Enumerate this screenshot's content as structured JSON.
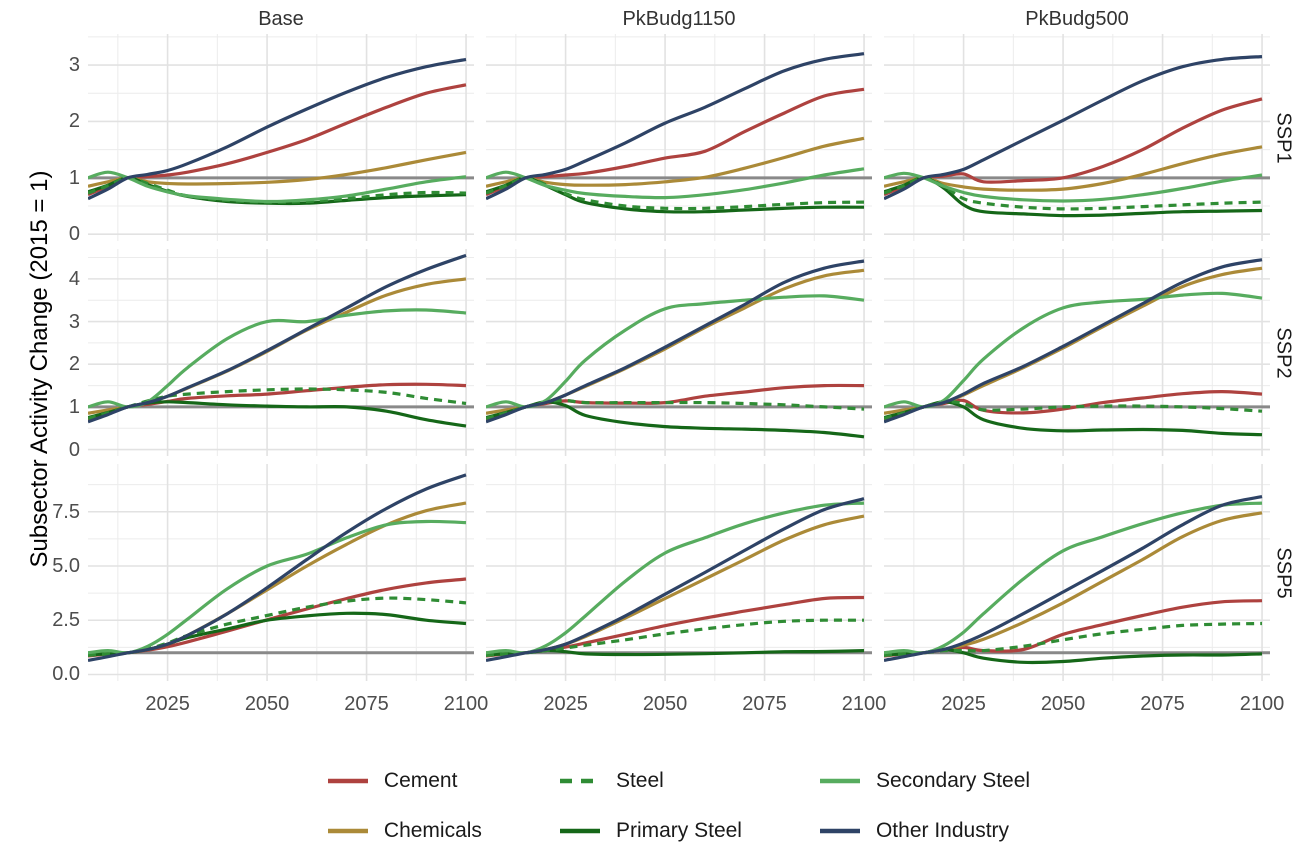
{
  "y_axis_title": "Subsector Activity Change (2015 = 1)",
  "column_headers": [
    "Base",
    "PkBudg1150",
    "PkBudg500"
  ],
  "row_labels": [
    "SSP1",
    "SSP2",
    "SSP5"
  ],
  "x_tick_labels": [
    "2025",
    "2050",
    "2075",
    "2100"
  ],
  "y_tick_labels": [
    [
      "0",
      "1",
      "2",
      "3"
    ],
    [
      "0",
      "1",
      "2",
      "3",
      "4"
    ],
    [
      "0.0",
      "2.5",
      "5.0",
      "7.5"
    ]
  ],
  "colors": {
    "Cement": "#AE423F",
    "Chemicals": "#AB8A38",
    "Steel": "#2F8C34",
    "Primary Steel": "#156718",
    "Secondary Steel": "#57AC5F",
    "Other Industry": "#2E4366",
    "reference_line": "#898989",
    "grid_major": "#E2E2E2",
    "grid_minor": "#ECECEC",
    "axis_text": "#4D4D4D"
  },
  "legend": [
    {
      "label": "Cement",
      "dashed": false
    },
    {
      "label": "Chemicals",
      "dashed": false
    },
    {
      "label": "Steel",
      "dashed": true
    },
    {
      "label": "Primary Steel",
      "dashed": false
    },
    {
      "label": "Secondary Steel",
      "dashed": false
    },
    {
      "label": "Other Industry",
      "dashed": false
    }
  ],
  "chart_data": {
    "type": "line",
    "x": [
      2005,
      2010,
      2015,
      2020,
      2025,
      2030,
      2040,
      2050,
      2060,
      2070,
      2080,
      2090,
      2100
    ],
    "draw_order": [
      "Cement",
      "Chemicals",
      "Primary Steel",
      "Steel",
      "Secondary Steel",
      "Other Industry"
    ],
    "layout": {
      "x_range": [
        2005,
        2102
      ],
      "x_major": [
        2025,
        2050,
        2075,
        2100
      ],
      "x_minor": [
        2012.5,
        2037.5,
        2062.5,
        2087.5
      ],
      "row_ylims": [
        [
          -0.12,
          3.55
        ],
        [
          -0.15,
          4.7
        ],
        [
          -0.3,
          9.7
        ]
      ],
      "y_major": [
        [
          0,
          1,
          2,
          3
        ],
        [
          0,
          1,
          2,
          3,
          4
        ],
        [
          0,
          2.5,
          5,
          7.5
        ]
      ],
      "y_minor": [
        [
          0.5,
          1.5,
          2.5,
          3.5
        ],
        [
          0.5,
          1.5,
          2.5,
          3.5,
          4.5
        ],
        [
          1.25,
          3.75,
          6.25,
          8.75
        ]
      ],
      "reference_line_y": 1,
      "grid": true,
      "legend_position": "bottom"
    },
    "facets": [
      {
        "scenario": "Base",
        "ssp": "SSP1",
        "series": {
          "Cement": [
            0.7,
            0.85,
            1.0,
            1.02,
            1.05,
            1.1,
            1.25,
            1.45,
            1.68,
            1.97,
            2.25,
            2.5,
            2.65
          ],
          "Chemicals": [
            0.85,
            0.93,
            1.0,
            0.93,
            0.9,
            0.89,
            0.9,
            0.92,
            0.97,
            1.06,
            1.18,
            1.32,
            1.45
          ],
          "Steel": [
            0.73,
            0.86,
            1.0,
            0.9,
            0.78,
            0.68,
            0.6,
            0.57,
            0.58,
            0.63,
            0.7,
            0.74,
            0.73
          ],
          "Primary Steel": [
            0.75,
            0.87,
            1.0,
            0.88,
            0.76,
            0.67,
            0.58,
            0.55,
            0.55,
            0.6,
            0.65,
            0.68,
            0.7
          ],
          "Secondary Steel": [
            1.0,
            1.1,
            1.0,
            0.85,
            0.75,
            0.68,
            0.62,
            0.58,
            0.61,
            0.68,
            0.8,
            0.93,
            1.02
          ],
          "Other Industry": [
            0.63,
            0.8,
            1.0,
            1.06,
            1.13,
            1.25,
            1.55,
            1.9,
            2.22,
            2.52,
            2.78,
            2.97,
            3.1
          ]
        }
      },
      {
        "scenario": "PkBudg1150",
        "ssp": "SSP1",
        "series": {
          "Cement": [
            0.7,
            0.85,
            1.0,
            1.02,
            1.05,
            1.08,
            1.2,
            1.35,
            1.47,
            1.82,
            2.15,
            2.45,
            2.57
          ],
          "Chemicals": [
            0.85,
            0.93,
            1.0,
            0.92,
            0.88,
            0.87,
            0.88,
            0.93,
            1.01,
            1.17,
            1.36,
            1.56,
            1.7
          ],
          "Steel": [
            0.73,
            0.86,
            1.0,
            0.88,
            0.72,
            0.61,
            0.5,
            0.46,
            0.46,
            0.49,
            0.53,
            0.56,
            0.57
          ],
          "Primary Steel": [
            0.75,
            0.87,
            1.0,
            0.86,
            0.7,
            0.56,
            0.45,
            0.4,
            0.4,
            0.43,
            0.46,
            0.48,
            0.48
          ],
          "Secondary Steel": [
            1.0,
            1.1,
            1.0,
            0.86,
            0.78,
            0.72,
            0.67,
            0.65,
            0.7,
            0.79,
            0.91,
            1.05,
            1.16
          ],
          "Other Industry": [
            0.63,
            0.8,
            1.0,
            1.06,
            1.15,
            1.3,
            1.62,
            1.97,
            2.25,
            2.58,
            2.9,
            3.1,
            3.2
          ]
        }
      },
      {
        "scenario": "PkBudg500",
        "ssp": "SSP1",
        "series": {
          "Cement": [
            0.7,
            0.85,
            1.0,
            1.03,
            1.07,
            0.93,
            0.95,
            1.0,
            1.2,
            1.5,
            1.88,
            2.2,
            2.4
          ],
          "Chemicals": [
            0.85,
            0.93,
            1.0,
            0.9,
            0.84,
            0.8,
            0.78,
            0.8,
            0.9,
            1.06,
            1.25,
            1.42,
            1.55
          ],
          "Steel": [
            0.73,
            0.86,
            1.0,
            0.85,
            0.63,
            0.55,
            0.48,
            0.45,
            0.46,
            0.49,
            0.52,
            0.55,
            0.57
          ],
          "Primary Steel": [
            0.75,
            0.87,
            1.0,
            0.82,
            0.52,
            0.4,
            0.36,
            0.33,
            0.34,
            0.37,
            0.4,
            0.41,
            0.42
          ],
          "Secondary Steel": [
            1.0,
            1.08,
            1.0,
            0.85,
            0.74,
            0.67,
            0.61,
            0.59,
            0.62,
            0.7,
            0.81,
            0.94,
            1.05
          ],
          "Other Industry": [
            0.63,
            0.8,
            1.0,
            1.06,
            1.15,
            1.32,
            1.67,
            2.02,
            2.38,
            2.72,
            2.97,
            3.1,
            3.15
          ]
        }
      },
      {
        "scenario": "Base",
        "ssp": "SSP2",
        "series": {
          "Cement": [
            0.7,
            0.85,
            1.0,
            1.06,
            1.13,
            1.2,
            1.26,
            1.3,
            1.38,
            1.46,
            1.52,
            1.53,
            1.5
          ],
          "Chemicals": [
            0.85,
            0.93,
            1.0,
            1.1,
            1.25,
            1.44,
            1.84,
            2.3,
            2.8,
            3.22,
            3.62,
            3.87,
            4.0
          ],
          "Steel": [
            0.73,
            0.86,
            1.0,
            1.14,
            1.25,
            1.3,
            1.36,
            1.4,
            1.42,
            1.4,
            1.34,
            1.2,
            1.08
          ],
          "Primary Steel": [
            0.75,
            0.87,
            1.0,
            1.09,
            1.12,
            1.1,
            1.05,
            1.02,
            1.0,
            1.0,
            0.9,
            0.7,
            0.55
          ],
          "Secondary Steel": [
            1.0,
            1.12,
            1.0,
            1.12,
            1.5,
            1.92,
            2.6,
            3.0,
            3.0,
            3.15,
            3.25,
            3.27,
            3.2
          ],
          "Other Industry": [
            0.65,
            0.82,
            1.0,
            1.1,
            1.25,
            1.45,
            1.85,
            2.32,
            2.82,
            3.32,
            3.82,
            4.22,
            4.55
          ]
        }
      },
      {
        "scenario": "PkBudg1150",
        "ssp": "SSP2",
        "series": {
          "Cement": [
            0.7,
            0.85,
            1.0,
            1.08,
            1.14,
            1.1,
            1.09,
            1.1,
            1.25,
            1.35,
            1.45,
            1.5,
            1.5
          ],
          "Chemicals": [
            0.85,
            0.93,
            1.0,
            1.1,
            1.28,
            1.48,
            1.9,
            2.36,
            2.86,
            3.32,
            3.77,
            4.07,
            4.2
          ],
          "Steel": [
            0.73,
            0.86,
            1.0,
            1.12,
            1.15,
            1.1,
            1.1,
            1.1,
            1.1,
            1.08,
            1.05,
            1.0,
            0.95
          ],
          "Primary Steel": [
            0.75,
            0.87,
            1.0,
            1.12,
            1.03,
            0.8,
            0.63,
            0.54,
            0.5,
            0.48,
            0.45,
            0.4,
            0.3
          ],
          "Secondary Steel": [
            1.0,
            1.12,
            1.0,
            1.15,
            1.6,
            2.1,
            2.8,
            3.3,
            3.42,
            3.5,
            3.57,
            3.6,
            3.5
          ],
          "Other Industry": [
            0.65,
            0.82,
            1.0,
            1.1,
            1.28,
            1.5,
            1.92,
            2.4,
            2.9,
            3.4,
            3.92,
            4.25,
            4.42
          ]
        }
      },
      {
        "scenario": "PkBudg500",
        "ssp": "SSP2",
        "series": {
          "Cement": [
            0.7,
            0.85,
            1.0,
            1.08,
            1.15,
            0.92,
            0.86,
            0.95,
            1.1,
            1.21,
            1.31,
            1.36,
            1.3
          ],
          "Chemicals": [
            0.85,
            0.93,
            1.0,
            1.1,
            1.28,
            1.5,
            1.92,
            2.38,
            2.88,
            3.36,
            3.82,
            4.1,
            4.25
          ],
          "Steel": [
            0.73,
            0.86,
            1.0,
            1.12,
            1.08,
            0.93,
            0.95,
            1.0,
            1.02,
            1.02,
            1.0,
            0.96,
            0.9
          ],
          "Primary Steel": [
            0.75,
            0.87,
            1.0,
            1.12,
            1.0,
            0.7,
            0.5,
            0.44,
            0.46,
            0.47,
            0.45,
            0.38,
            0.35
          ],
          "Secondary Steel": [
            1.0,
            1.12,
            1.0,
            1.15,
            1.62,
            2.12,
            2.85,
            3.32,
            3.46,
            3.52,
            3.62,
            3.66,
            3.55
          ],
          "Other Industry": [
            0.65,
            0.82,
            1.0,
            1.1,
            1.3,
            1.55,
            1.95,
            2.42,
            2.92,
            3.42,
            3.92,
            4.28,
            4.45
          ]
        }
      },
      {
        "scenario": "Base",
        "ssp": "SSP5",
        "series": {
          "Cement": [
            0.85,
            0.95,
            1.0,
            1.12,
            1.28,
            1.5,
            2.0,
            2.52,
            3.02,
            3.5,
            3.92,
            4.22,
            4.4
          ],
          "Chemicals": [
            0.9,
            0.95,
            1.0,
            1.15,
            1.4,
            1.8,
            2.8,
            3.9,
            5.0,
            6.0,
            6.9,
            7.55,
            7.9
          ],
          "Steel": [
            0.88,
            0.95,
            1.0,
            1.18,
            1.45,
            1.8,
            2.32,
            2.72,
            3.1,
            3.38,
            3.52,
            3.45,
            3.3
          ],
          "Primary Steel": [
            0.9,
            0.95,
            1.0,
            1.15,
            1.4,
            1.7,
            2.1,
            2.5,
            2.7,
            2.82,
            2.76,
            2.5,
            2.35
          ],
          "Secondary Steel": [
            1.0,
            1.1,
            1.0,
            1.3,
            1.85,
            2.55,
            3.95,
            5.0,
            5.55,
            6.3,
            6.9,
            7.05,
            7.0
          ],
          "Other Industry": [
            0.65,
            0.82,
            1.0,
            1.15,
            1.4,
            1.8,
            2.8,
            4.0,
            5.3,
            6.55,
            7.65,
            8.55,
            9.2
          ]
        }
      },
      {
        "scenario": "PkBudg1150",
        "ssp": "SSP5",
        "series": {
          "Cement": [
            0.85,
            0.95,
            1.0,
            1.12,
            1.26,
            1.45,
            1.85,
            2.25,
            2.6,
            2.92,
            3.22,
            3.5,
            3.55
          ],
          "Chemicals": [
            0.9,
            0.95,
            1.0,
            1.15,
            1.4,
            1.75,
            2.6,
            3.5,
            4.4,
            5.3,
            6.2,
            6.9,
            7.3
          ],
          "Steel": [
            0.88,
            0.95,
            1.0,
            1.1,
            1.22,
            1.35,
            1.6,
            1.87,
            2.1,
            2.3,
            2.45,
            2.5,
            2.5
          ],
          "Primary Steel": [
            0.9,
            0.95,
            1.0,
            1.1,
            1.05,
            0.95,
            0.92,
            0.93,
            0.96,
            1.0,
            1.05,
            1.06,
            1.1
          ],
          "Secondary Steel": [
            1.0,
            1.1,
            1.0,
            1.32,
            1.92,
            2.7,
            4.3,
            5.6,
            6.3,
            6.95,
            7.45,
            7.8,
            7.9
          ],
          "Other Industry": [
            0.65,
            0.82,
            1.0,
            1.15,
            1.4,
            1.8,
            2.7,
            3.7,
            4.7,
            5.72,
            6.72,
            7.6,
            8.1
          ]
        }
      },
      {
        "scenario": "PkBudg500",
        "ssp": "SSP5",
        "series": {
          "Cement": [
            0.85,
            0.95,
            1.0,
            1.14,
            1.25,
            1.1,
            1.15,
            1.85,
            2.3,
            2.72,
            3.1,
            3.35,
            3.4
          ],
          "Chemicals": [
            0.9,
            0.95,
            1.0,
            1.15,
            1.35,
            1.62,
            2.4,
            3.3,
            4.3,
            5.3,
            6.35,
            7.1,
            7.45
          ],
          "Steel": [
            0.88,
            0.95,
            1.0,
            1.1,
            1.1,
            1.1,
            1.3,
            1.6,
            1.88,
            2.08,
            2.26,
            2.32,
            2.35
          ],
          "Primary Steel": [
            0.9,
            0.95,
            1.0,
            1.15,
            1.0,
            0.75,
            0.56,
            0.6,
            0.75,
            0.85,
            0.9,
            0.9,
            0.95
          ],
          "Secondary Steel": [
            1.0,
            1.1,
            1.0,
            1.32,
            1.95,
            2.8,
            4.4,
            5.7,
            6.35,
            6.95,
            7.45,
            7.8,
            7.9
          ],
          "Other Industry": [
            0.65,
            0.82,
            1.0,
            1.15,
            1.45,
            1.85,
            2.8,
            3.8,
            4.8,
            5.82,
            6.9,
            7.8,
            8.2
          ]
        }
      }
    ]
  }
}
